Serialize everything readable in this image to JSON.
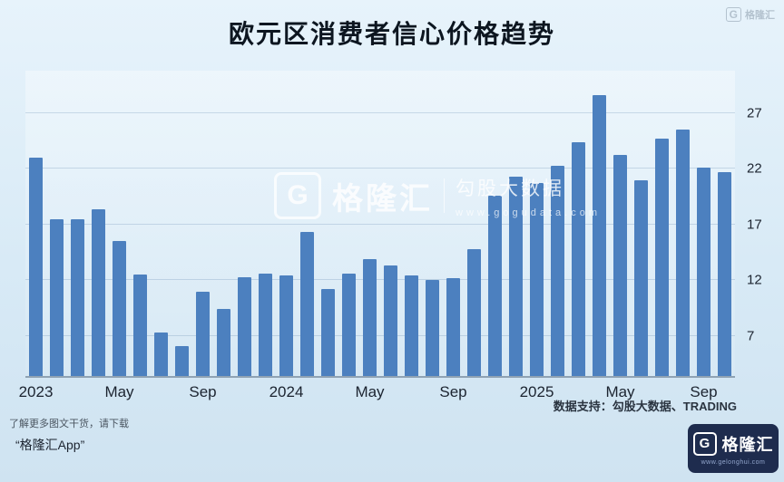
{
  "page": {
    "background": "#d9ebf7",
    "title": "欧元区消费者信心价格趋势"
  },
  "corner_mark": {
    "g": "G",
    "text": "格隆汇"
  },
  "watermark": {
    "g": "G",
    "brand": "格隆汇",
    "subtitle": "勾股大数据",
    "url": "www.gogudata.com"
  },
  "chart_data": {
    "type": "bar",
    "title": "欧元区消费者信心价格趋势",
    "xlabel": "",
    "ylabel": "",
    "bar_color": "#4c80bf",
    "grid": true,
    "legend": "none",
    "y_axis_side": "right",
    "ylim": [
      3.4,
      30.8
    ],
    "y_ticks": [
      7,
      12,
      17,
      22,
      27
    ],
    "categories": [
      "2023-01",
      "2023-02",
      "2023-03",
      "2023-04",
      "2023-05",
      "2023-06",
      "2023-07",
      "2023-08",
      "2023-09",
      "2023-10",
      "2023-11",
      "2023-12",
      "2024-01",
      "2024-02",
      "2024-03",
      "2024-04",
      "2024-05",
      "2024-06",
      "2024-07",
      "2024-08",
      "2024-09",
      "2024-10",
      "2024-11",
      "2024-12",
      "2025-01",
      "2025-02",
      "2025-03",
      "2025-04",
      "2025-05",
      "2025-06",
      "2025-07",
      "2025-08",
      "2025-09",
      "2025-10"
    ],
    "values": [
      23.0,
      17.5,
      17.5,
      18.4,
      15.5,
      12.5,
      7.3,
      6.1,
      11.0,
      9.4,
      12.3,
      12.6,
      12.4,
      16.3,
      11.2,
      12.6,
      13.9,
      13.3,
      12.4,
      12.0,
      12.2,
      14.8,
      19.6,
      21.3,
      20.7,
      22.3,
      24.4,
      28.6,
      23.2,
      21.0,
      24.7,
      25.5,
      22.1,
      21.7
    ],
    "x_ticks": [
      {
        "index": 0,
        "label": "2023"
      },
      {
        "index": 4,
        "label": "May"
      },
      {
        "index": 8,
        "label": "Sep"
      },
      {
        "index": 12,
        "label": "2024"
      },
      {
        "index": 16,
        "label": "May"
      },
      {
        "index": 20,
        "label": "Sep"
      },
      {
        "index": 24,
        "label": "2025"
      },
      {
        "index": 28,
        "label": "May"
      },
      {
        "index": 32,
        "label": "Sep"
      }
    ]
  },
  "notes": {
    "data_support": "数据支持：勾股大数据、TRADING"
  },
  "footer": {
    "line1": "了解更多图文干货，请下载",
    "line2": "“格隆汇App”",
    "logo": {
      "g": "G",
      "text": "格隆汇",
      "url": "www.gelonghui.com"
    }
  }
}
